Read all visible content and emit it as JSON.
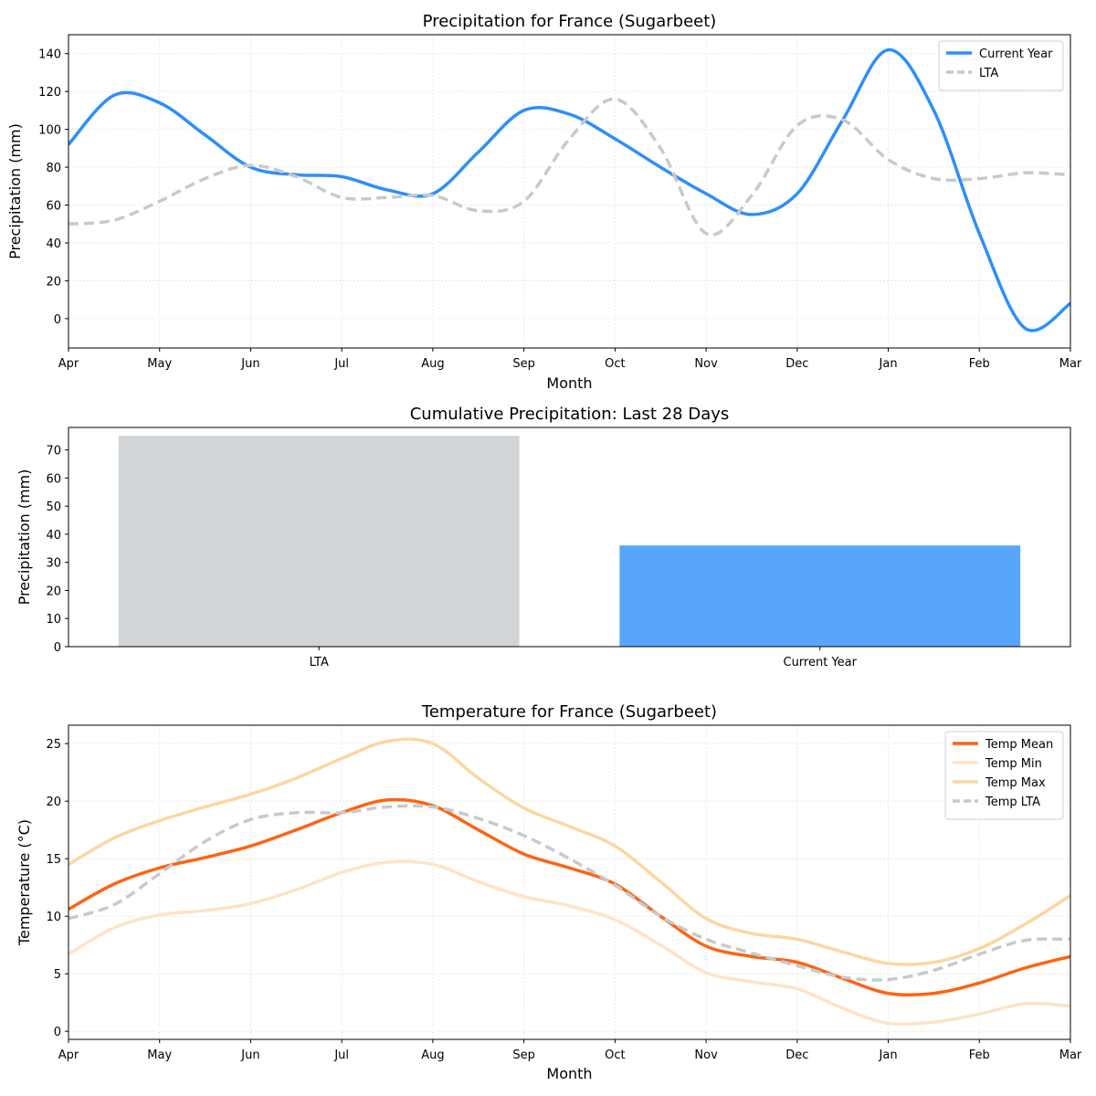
{
  "chart_data": [
    {
      "type": "line",
      "title": "Precipitation for France (Sugarbeet)",
      "xlabel": "Month",
      "ylabel": "Precipitation (mm)",
      "x_ticks": [
        "Apr",
        "May",
        "Jun",
        "Jul",
        "Aug",
        "Sep",
        "Oct",
        "Nov",
        "Dec",
        "Jan",
        "Feb",
        "Mar"
      ],
      "x_step": 0.5,
      "ylim": [
        -15.5,
        150
      ],
      "yticks": [
        0,
        20,
        40,
        60,
        80,
        100,
        120,
        140
      ],
      "grid": true,
      "legend": "top-right",
      "series": [
        {
          "name": "Current Year",
          "color": "#2e8ff7",
          "dash": false,
          "values": [
            92,
            118,
            114,
            97,
            80,
            76,
            75,
            68,
            66,
            88,
            110,
            108,
            95,
            80,
            66,
            55,
            66,
            105,
            142,
            110,
            45,
            -5,
            8
          ]
        },
        {
          "name": "LTA",
          "color": "#c6cacc",
          "dash": true,
          "values": [
            50,
            52,
            62,
            74,
            81,
            75,
            64,
            64,
            65,
            57,
            62,
            95,
            116,
            90,
            45,
            65,
            102,
            105,
            84,
            74,
            74,
            77,
            76
          ]
        }
      ]
    },
    {
      "type": "bar",
      "title": "Cumulative Precipitation: Last 28 Days",
      "xlabel": "",
      "ylabel": "Precipitation (mm)",
      "categories": [
        "LTA",
        "Current Year"
      ],
      "values": [
        75,
        36
      ],
      "colors": [
        "#d1d5d8",
        "#58a6fb"
      ],
      "ylim": [
        0,
        78
      ],
      "yticks": [
        0,
        10,
        20,
        30,
        40,
        50,
        60,
        70
      ]
    },
    {
      "type": "line",
      "title": "Temperature for France (Sugarbeet)",
      "xlabel": "Month",
      "ylabel": "Temperature (°C)",
      "x_ticks": [
        "Apr",
        "May",
        "Jun",
        "Jul",
        "Aug",
        "Sep",
        "Oct",
        "Nov",
        "Dec",
        "Jan",
        "Feb",
        "Mar"
      ],
      "x_step": 0.5,
      "ylim": [
        -0.7,
        26.6
      ],
      "yticks": [
        0,
        5,
        10,
        15,
        20,
        25
      ],
      "grid": true,
      "legend": "top-right",
      "series": [
        {
          "name": "Temp Mean",
          "color": "#fd6412",
          "dash": false,
          "values": [
            10.6,
            12.8,
            14.2,
            15.1,
            16.1,
            17.5,
            19,
            20.1,
            19.6,
            17.5,
            15.4,
            14.2,
            12.8,
            10,
            7.4,
            6.5,
            6,
            4.6,
            3.3,
            3.3,
            4.2,
            5.5,
            6.5
          ]
        },
        {
          "name": "Temp Min",
          "color": "#fee3c8",
          "dash": false,
          "values": [
            6.7,
            9,
            10.1,
            10.5,
            11.1,
            12.3,
            13.8,
            14.7,
            14.5,
            13,
            11.7,
            10.9,
            9.7,
            7.5,
            5.1,
            4.3,
            3.7,
            2,
            0.7,
            0.8,
            1.5,
            2.4,
            2.2
          ]
        },
        {
          "name": "Temp Max",
          "color": "#fbd7a0",
          "dash": false,
          "values": [
            14.5,
            16.8,
            18.3,
            19.5,
            20.6,
            22,
            23.7,
            25.2,
            25,
            22,
            19.4,
            17.8,
            16.1,
            13,
            9.8,
            8.5,
            8,
            6.9,
            5.9,
            6,
            7.2,
            9.3,
            11.8
          ]
        },
        {
          "name": "Temp LTA",
          "color": "#c6cacc",
          "dash": true,
          "values": [
            9.8,
            11,
            13.7,
            16.5,
            18.4,
            19,
            19,
            19.5,
            19.5,
            18.5,
            17,
            15,
            12.7,
            10,
            8,
            6.8,
            5.7,
            4.7,
            4.5,
            5.3,
            6.7,
            7.9,
            8.0
          ]
        }
      ]
    }
  ]
}
